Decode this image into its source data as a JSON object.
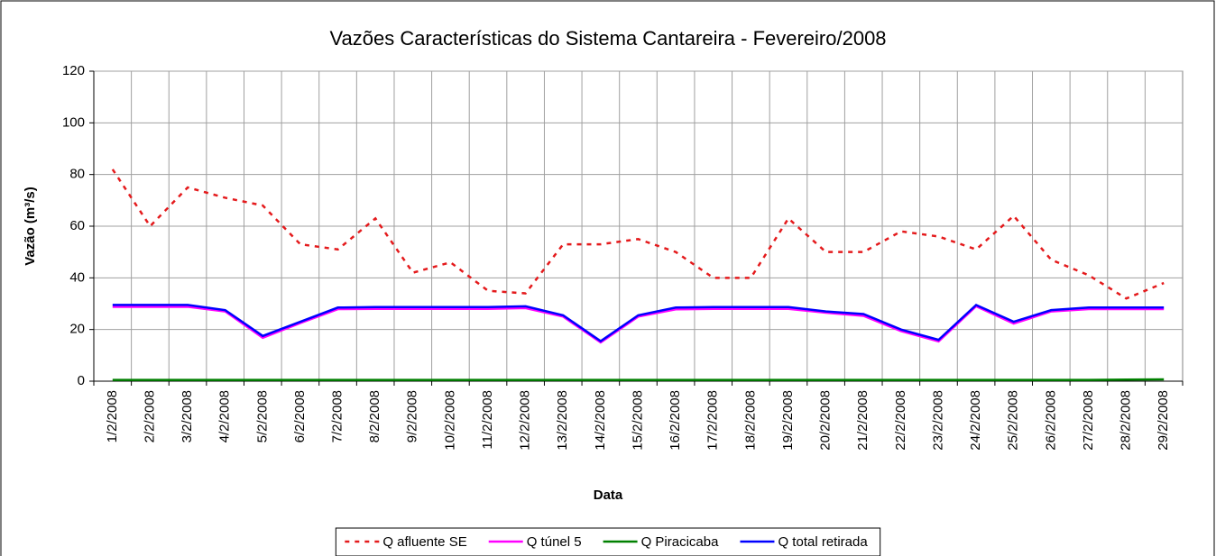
{
  "chart_data": {
    "type": "line",
    "title": "Vazões Características do Sistema Cantareira - Fevereiro/2008",
    "x_label": "Data",
    "y_label": "Vazão (m³/s)",
    "categories": [
      "1/2/2008",
      "2/2/2008",
      "3/2/2008",
      "4/2/2008",
      "5/2/2008",
      "6/2/2008",
      "7/2/2008",
      "8/2/2008",
      "9/2/2008",
      "10/2/2008",
      "11/2/2008",
      "12/2/2008",
      "13/2/2008",
      "14/2/2008",
      "15/2/2008",
      "16/2/2008",
      "17/2/2008",
      "18/2/2008",
      "19/2/2008",
      "20/2/2008",
      "21/2/2008",
      "22/2/2008",
      "23/2/2008",
      "24/2/2008",
      "25/2/2008",
      "26/2/2008",
      "27/2/2008",
      "28/2/2008",
      "29/2/2008"
    ],
    "series": [
      {
        "name": "Q afluente SE",
        "color": "#e41a1c",
        "dashed": true,
        "values": [
          82,
          60,
          75,
          71,
          68,
          53,
          51,
          63,
          42,
          46,
          35,
          34,
          53,
          53,
          55,
          50,
          40,
          40,
          63,
          50,
          50,
          58,
          56,
          51,
          64,
          47,
          41,
          32,
          38
        ]
      },
      {
        "name": "Q túnel 5",
        "color": "#ff00ff",
        "dashed": false,
        "values": [
          28.8,
          28.8,
          28.8,
          27,
          16.8,
          22.5,
          27.9,
          28,
          28,
          28,
          28,
          28.3,
          25,
          15,
          25,
          27.8,
          28,
          28,
          28,
          26.5,
          25.3,
          19.4,
          15.4,
          29,
          22.3,
          27,
          27.9,
          27.9,
          27.9
        ]
      },
      {
        "name": "Q Piracicaba",
        "color": "#008000",
        "dashed": false,
        "values": [
          0.5,
          0.5,
          0.5,
          0.5,
          0.5,
          0.5,
          0.5,
          0.5,
          0.5,
          0.5,
          0.5,
          0.5,
          0.5,
          0.5,
          0.5,
          0.5,
          0.5,
          0.5,
          0.5,
          0.5,
          0.5,
          0.5,
          0.5,
          0.5,
          0.5,
          0.5,
          0.5,
          0.6,
          0.7
        ]
      },
      {
        "name": "Q total retirada",
        "color": "#0000ff",
        "dashed": false,
        "values": [
          29.5,
          29.5,
          29.5,
          27.5,
          17.5,
          23,
          28.5,
          28.7,
          28.7,
          28.7,
          28.7,
          29,
          25.5,
          15.5,
          25.5,
          28.5,
          28.7,
          28.7,
          28.7,
          27,
          26,
          20,
          16,
          29.5,
          23,
          27.5,
          28.5,
          28.5,
          28.5
        ]
      }
    ],
    "ylim": [
      0,
      120
    ],
    "yticks": [
      0,
      20,
      40,
      60,
      80,
      100,
      120
    ],
    "grid": true,
    "legend": "bottom"
  }
}
